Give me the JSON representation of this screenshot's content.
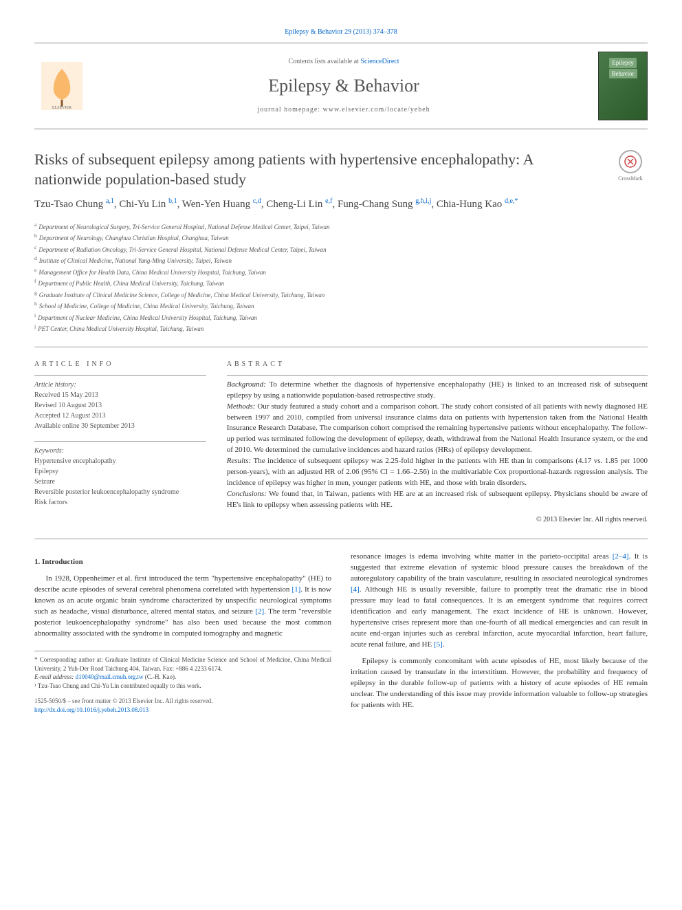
{
  "journal": {
    "top_link": "Epilepsy & Behavior 29 (2013) 374–378",
    "contents_prefix": "Contents lists available at ",
    "contents_link": "ScienceDirect",
    "name": "Epilepsy & Behavior",
    "homepage_prefix": "journal homepage: ",
    "homepage": "www.elsevier.com/locate/yebeh",
    "cover_label_1": "Epilepsy",
    "cover_label_2": "Behavior"
  },
  "crossmark_label": "CrossMark",
  "title": "Risks of subsequent epilepsy among patients with hypertensive encephalopathy: A nationwide population-based study",
  "authors_html": "Tzu-Tsao Chung <sup>a,1</sup>, Chi-Yu Lin <sup>b,1</sup>, Wen-Yen Huang <sup>c,d</sup>, Cheng-Li Lin <sup>e,f</sup>, Fung-Chang Sung <sup>g,h,i,j</sup>, Chia-Hung Kao <sup>d,e,*</sup>",
  "affiliations": [
    {
      "sup": "a",
      "text": "Department of Neurological Surgery, Tri-Service General Hospital, National Defense Medical Center, Taipei, Taiwan"
    },
    {
      "sup": "b",
      "text": "Department of Neurology, Changhua Christian Hospital, Changhua, Taiwan"
    },
    {
      "sup": "c",
      "text": "Department of Radiation Oncology, Tri-Service General Hospital, National Defense Medical Center, Taipei, Taiwan"
    },
    {
      "sup": "d",
      "text": "Institute of Clinical Medicine, National Yang-Ming University, Taipei, Taiwan"
    },
    {
      "sup": "e",
      "text": "Management Office for Health Data, China Medical University Hospital, Taichung, Taiwan"
    },
    {
      "sup": "f",
      "text": "Department of Public Health, China Medical University, Taichung, Taiwan"
    },
    {
      "sup": "g",
      "text": "Graduate Institute of Clinical Medicine Science, College of Medicine, China Medical University, Taichung, Taiwan"
    },
    {
      "sup": "h",
      "text": "School of Medicine, College of Medicine, China Medical University, Taichung, Taiwan"
    },
    {
      "sup": "i",
      "text": "Department of Nuclear Medicine, China Medical University Hospital, Taichung, Taiwan"
    },
    {
      "sup": "j",
      "text": "PET Center, China Medical University Hospital, Taichung, Taiwan"
    }
  ],
  "article_info": {
    "heading": "ARTICLE INFO",
    "history_label": "Article history:",
    "history": [
      "Received 15 May 2013",
      "Revised 10 August 2013",
      "Accepted 12 August 2013",
      "Available online 30 September 2013"
    ],
    "keywords_label": "Keywords:",
    "keywords": [
      "Hypertensive encephalopathy",
      "Epilepsy",
      "Seizure",
      "Reversible posterior leukoencephalopathy syndrome",
      "Risk factors"
    ]
  },
  "abstract": {
    "heading": "ABSTRACT",
    "background_label": "Background:",
    "background": " To determine whether the diagnosis of hypertensive encephalopathy (HE) is linked to an increased risk of subsequent epilepsy by using a nationwide population-based retrospective study.",
    "methods_label": "Methods:",
    "methods": " Our study featured a study cohort and a comparison cohort. The study cohort consisted of all patients with newly diagnosed HE between 1997 and 2010, compiled from universal insurance claims data on patients with hypertension taken from the National Health Insurance Research Database. The comparison cohort comprised the remaining hypertensive patients without encephalopathy. The follow-up period was terminated following the development of epilepsy, death, withdrawal from the National Health Insurance system, or the end of 2010. We determined the cumulative incidences and hazard ratios (HRs) of epilepsy development.",
    "results_label": "Results:",
    "results": " The incidence of subsequent epilepsy was 2.25-fold higher in the patients with HE than in comparisons (4.17 vs. 1.85 per 1000 person-years), with an adjusted HR of 2.06 (95% CI = 1.66–2.56) in the multivariable Cox proportional-hazards regression analysis. The incidence of epilepsy was higher in men, younger patients with HE, and those with brain disorders.",
    "conclusions_label": "Conclusions:",
    "conclusions": " We found that, in Taiwan, patients with HE are at an increased risk of subsequent epilepsy. Physicians should be aware of HE's link to epilepsy when assessing patients with HE.",
    "copyright": "© 2013 Elsevier Inc. All rights reserved."
  },
  "intro": {
    "heading": "1. Introduction",
    "para1_a": "In 1928, Oppenheimer et al. first introduced the term \"hypertensive encephalopathy\" (HE) to describe acute episodes of several cerebral phenomena correlated with hypertension ",
    "ref1": "[1]",
    "para1_b": ". It is now known as an acute organic brain syndrome characterized by unspecific neurological symptoms such as headache, visual disturbance, altered mental status, and seizure ",
    "ref2": "[2]",
    "para1_c": ". The term \"reversible posterior leukoencephalopathy syndrome\" has also been used because the most common abnormality associated with the syndrome in computed tomography and magnetic",
    "para1_d": "resonance images is edema involving white matter in the parieto-occipital areas ",
    "ref24": "[2–4]",
    "para1_e": ". It is suggested that extreme elevation of systemic blood pressure causes the breakdown of the autoregulatory capability of the brain vasculature, resulting in associated neurological syndromes ",
    "ref4": "[4]",
    "para1_f": ". Although HE is usually reversible, failure to promptly treat the dramatic rise in blood pressure may lead to fatal consequences. It is an emergent syndrome that requires correct identification and early management. The exact incidence of HE is unknown. However, hypertensive crises represent more than one-fourth of all medical emergencies and can result in acute end-organ injuries such as cerebral infarction, acute myocardial infarction, heart failure, acute renal failure, and HE ",
    "ref5": "[5]",
    "para1_g": ".",
    "para2": "Epilepsy is commonly concomitant with acute episodes of HE, most likely because of the irritation caused by transudate in the interstitium. However, the probability and frequency of epilepsy in the durable follow-up of patients with a history of acute episodes of HE remain unclear. The understanding of this issue may provide information valuable to follow-up strategies for patients with HE."
  },
  "footnotes": {
    "corresponding": "* Corresponding author at: Graduate Institute of Clinical Medicine Science and School of Medicine, China Medical University, 2 Yuh-Der Road Taichung 404, Taiwan. Fax: +886 4 2233 6174.",
    "email_label": "E-mail address: ",
    "email": "d10040@mail.cmuh.org.tw",
    "email_suffix": " (C.-H. Kao).",
    "note1": "¹ Tzu-Tsao Chung and Chi-Yu Lin contributed equally to this work."
  },
  "bottom": {
    "issn": "1525-5050/$ – see front matter © 2013 Elsevier Inc. All rights reserved.",
    "doi": "http://dx.doi.org/10.1016/j.yebeh.2013.08.013"
  },
  "colors": {
    "link": "#0066cc",
    "text": "#333333",
    "muted": "#555555",
    "border": "#999999"
  }
}
